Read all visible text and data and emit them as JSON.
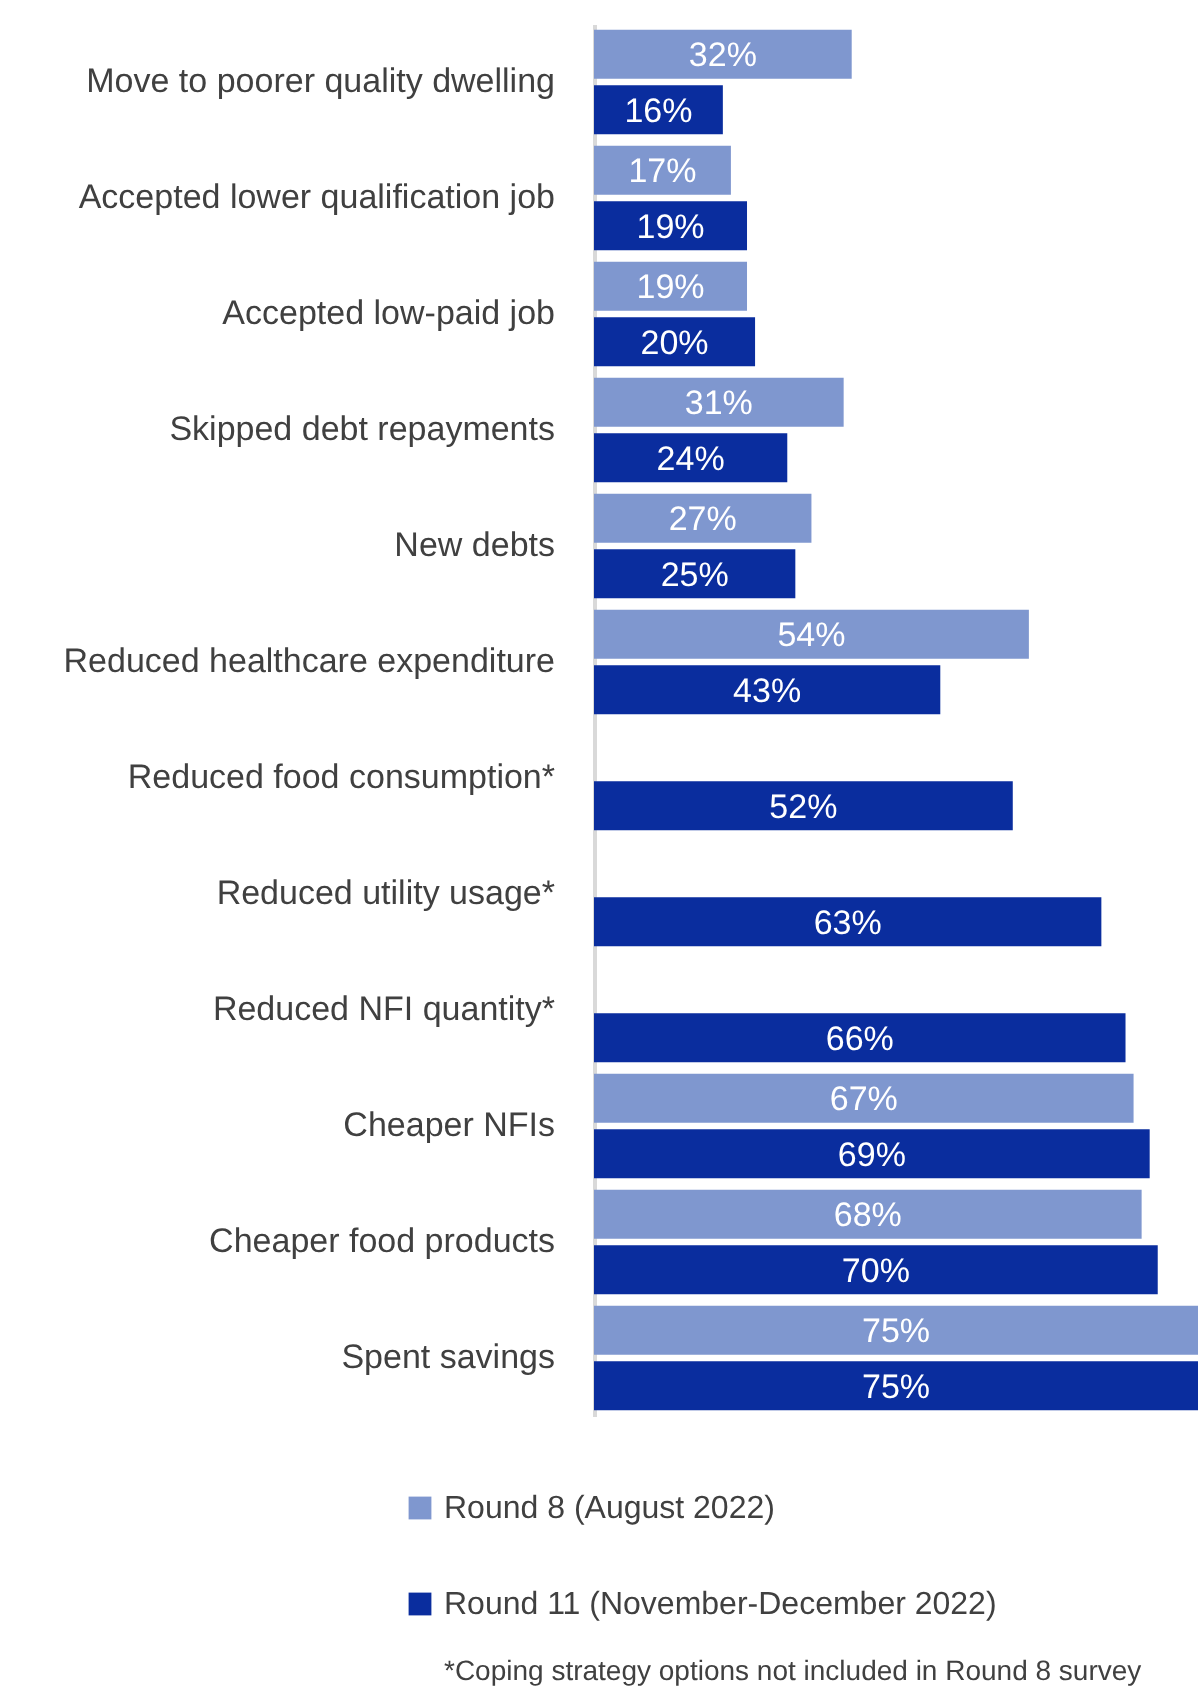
{
  "chart_data": {
    "type": "bar",
    "orientation": "horizontal",
    "categories": [
      "Move to poorer quality dwelling",
      "Accepted lower qualification job",
      "Accepted low-paid job",
      "Skipped debt repayments",
      "New debts",
      "Reduced healthcare expenditure",
      "Reduced food consumption*",
      "Reduced utility usage*",
      "Reduced NFI quantity*",
      "Cheaper NFIs",
      "Cheaper food products",
      "Spent savings"
    ],
    "series": [
      {
        "name": "Round 8 (August 2022)",
        "color": "#7f97cf",
        "values": [
          32,
          17,
          19,
          31,
          27,
          54,
          null,
          null,
          null,
          67,
          68,
          75
        ],
        "value_labels": [
          "32%",
          "17%",
          "19%",
          "31%",
          "27%",
          "54%",
          null,
          null,
          null,
          "67%",
          "68%",
          "75%"
        ]
      },
      {
        "name": "Round 11 (November-December 2022)",
        "color": "#0a2d9e",
        "values": [
          16,
          19,
          20,
          24,
          25,
          43,
          52,
          63,
          66,
          69,
          70,
          75
        ],
        "value_labels": [
          "16%",
          "19%",
          "20%",
          "24%",
          "25%",
          "43%",
          "52%",
          "63%",
          "66%",
          "69%",
          "70%",
          "75%"
        ]
      }
    ],
    "legend": "bottom",
    "annotations": [
      "*Coping strategy options not included in Round 8 survey"
    ]
  }
}
